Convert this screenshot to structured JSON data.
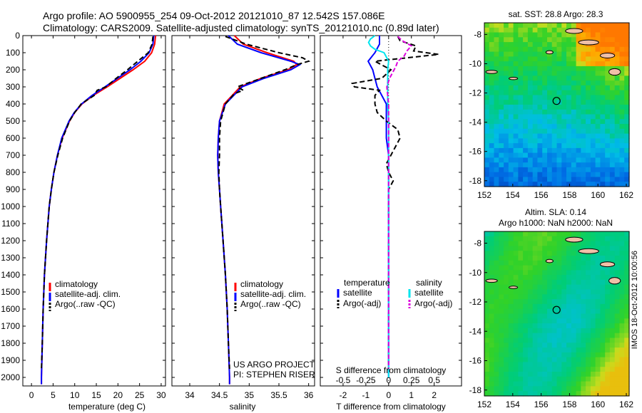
{
  "header": {
    "line1": "Argo profile: AO 5900955_254 09-Oct-2012 20121010_87 12.542S 157.086E",
    "line2": "Climatology: CARS2009. Satellite-adjusted climatology: synTS_20121010.nc (0.89d later)"
  },
  "stamp": "IMOS 18-Oct-2012 10:00:56",
  "depth_ticks": [
    0,
    100,
    200,
    300,
    400,
    500,
    600,
    700,
    800,
    900,
    1000,
    1100,
    1200,
    1300,
    1400,
    1500,
    1600,
    1700,
    1800,
    1900,
    2000
  ],
  "colors": {
    "climatology": "#ff0000",
    "satellite": "#0000ff",
    "argo": "#000000",
    "salinity_sat": "#00e5ee",
    "salinity_argo": "#dd00dd"
  },
  "chart_data": [
    {
      "type": "line",
      "name": "temperature",
      "xlabel": "temperature (deg C)",
      "ylabel": "depth",
      "xlim": [
        -2,
        31
      ],
      "ylim": [
        2050,
        0
      ],
      "xticks": [
        0,
        5,
        10,
        15,
        20,
        25,
        30
      ],
      "legend": [
        "climatology",
        "satellite-adj. clim.",
        "Argo(..raw -QC)"
      ],
      "series": [
        {
          "name": "climatology",
          "depth": [
            0,
            50,
            100,
            150,
            200,
            250,
            300,
            350,
            400,
            450,
            500,
            600,
            700,
            800,
            900,
            1000,
            1200,
            1400,
            1600,
            1800,
            2000,
            2040
          ],
          "values": [
            28.7,
            28.5,
            27.8,
            26.2,
            23.5,
            20.5,
            17.5,
            14.3,
            11.7,
            10.0,
            8.8,
            7.1,
            6.0,
            5.2,
            4.6,
            4.1,
            3.5,
            3.0,
            2.7,
            2.5,
            2.3,
            2.3
          ]
        },
        {
          "name": "satellite-adj. clim.",
          "depth": [
            0,
            50,
            100,
            150,
            200,
            250,
            300,
            350,
            400,
            450,
            500,
            600,
            700,
            800,
            900,
            1000,
            1200,
            1400,
            1600,
            1800,
            2000,
            2040
          ],
          "values": [
            28.3,
            28.1,
            27.2,
            25.3,
            22.8,
            19.9,
            17.0,
            14.0,
            11.6,
            9.9,
            8.7,
            7.0,
            6.0,
            5.2,
            4.6,
            4.1,
            3.5,
            3.0,
            2.7,
            2.5,
            2.3,
            2.3
          ]
        },
        {
          "name": "Argo(..raw -QC)",
          "depth": [
            5,
            50,
            100,
            150,
            200,
            250,
            300,
            320,
            350,
            400,
            450,
            500,
            600,
            700,
            800,
            900,
            1000,
            1200,
            1400,
            1600,
            1800,
            1950
          ],
          "values": [
            28.1,
            27.9,
            27.0,
            24.6,
            22.2,
            19.6,
            17.2,
            15.2,
            14.5,
            11.5,
            10.0,
            8.8,
            7.2,
            6.1,
            5.2,
            4.6,
            4.1,
            3.5,
            3.0,
            2.7,
            2.5,
            2.3
          ]
        }
      ]
    },
    {
      "type": "line",
      "name": "salinity",
      "xlabel": "salinity",
      "xlim": [
        33.7,
        36.1
      ],
      "ylim": [
        2050,
        0
      ],
      "xticks": [
        34,
        34.5,
        35,
        35.5,
        36
      ],
      "legend": [
        "climatology",
        "satellite-adj. clim.",
        "Argo(..raw -QC)"
      ],
      "annotation": [
        "US ARGO PROJECT",
        "PI: STEPHEN RISER"
      ],
      "series": [
        {
          "name": "climatology",
          "depth": [
            0,
            50,
            100,
            150,
            170,
            200,
            250,
            300,
            400,
            500,
            600,
            700,
            800,
            900,
            1000,
            1200,
            1400,
            1600,
            1800,
            2000,
            2040
          ],
          "values": [
            34.75,
            34.9,
            35.3,
            35.75,
            35.8,
            35.65,
            35.2,
            34.85,
            34.58,
            34.5,
            34.48,
            34.47,
            34.48,
            34.5,
            34.52,
            34.56,
            34.6,
            34.63,
            34.65,
            34.67,
            34.67
          ]
        },
        {
          "name": "satellite-adj. clim.",
          "depth": [
            0,
            50,
            100,
            150,
            170,
            200,
            250,
            300,
            400,
            500,
            600,
            700,
            800,
            900,
            1000,
            1200,
            1400,
            1600,
            1800,
            2000,
            2040
          ],
          "values": [
            34.65,
            34.8,
            35.2,
            35.7,
            35.85,
            35.7,
            35.25,
            34.88,
            34.6,
            34.5,
            34.48,
            34.47,
            34.48,
            34.5,
            34.52,
            34.56,
            34.6,
            34.63,
            34.65,
            34.67,
            34.67
          ]
        },
        {
          "name": "Argo(..raw -QC)",
          "depth": [
            5,
            50,
            100,
            130,
            150,
            170,
            200,
            250,
            300,
            320,
            340,
            400,
            500,
            600,
            700,
            800,
            900,
            1000,
            1200,
            1400,
            1600,
            1800,
            1950
          ],
          "values": [
            34.6,
            34.95,
            35.5,
            35.9,
            36.0,
            35.8,
            35.6,
            35.2,
            34.8,
            34.9,
            34.75,
            34.6,
            34.52,
            34.5,
            34.5,
            34.49,
            34.5,
            34.52,
            34.56,
            34.6,
            34.63,
            34.65,
            34.67
          ]
        }
      ]
    },
    {
      "type": "line",
      "name": "difference",
      "xlabel_top": "S difference from climatology",
      "xlabel": "T difference from climatology",
      "xlim": [
        -3,
        3.2
      ],
      "ylim": [
        2050,
        0
      ],
      "xticks": [
        -2,
        -1,
        0,
        1,
        2
      ],
      "sticks": [
        -0.5,
        -0.25,
        0,
        0.25,
        0.5
      ],
      "sticklabels": [
        "-0.5",
        "-0.25",
        "0",
        "0.25",
        "0.5"
      ],
      "legend_titles": [
        "temperature",
        "salinity"
      ],
      "legend": [
        "satellite",
        "Argo(-adj)",
        "satellite",
        "Argo(-adj)"
      ],
      "series": [
        {
          "name": "temperature satellite",
          "depth": [
            0,
            50,
            100,
            150,
            200,
            250,
            300,
            350,
            400,
            450,
            500,
            600,
            700,
            800,
            900,
            1000,
            1200,
            1400,
            1600,
            1800,
            2000
          ],
          "values": [
            -0.4,
            -0.4,
            -0.6,
            -0.9,
            -0.7,
            -0.6,
            -0.5,
            -0.3,
            -0.1,
            -0.1,
            -0.1,
            -0.1,
            0,
            0,
            0,
            0,
            0,
            0,
            0,
            0,
            0
          ]
        },
        {
          "name": "temperature Argo",
          "depth": [
            5,
            30,
            60,
            90,
            110,
            150,
            200,
            250,
            280,
            300,
            320,
            350,
            400,
            450,
            500,
            550,
            600,
            650,
            700,
            750,
            800,
            850,
            900,
            1000,
            1200,
            1400,
            1600,
            1800,
            1950
          ],
          "values": [
            0.4,
            0.5,
            1.2,
            1.1,
            2.2,
            -0.6,
            0.1,
            -0.3,
            -1.6,
            -1.5,
            -0.4,
            -0.6,
            -0.6,
            -0.5,
            -0.1,
            0.4,
            0.5,
            0.3,
            0.1,
            -0.1,
            0,
            0.2,
            0,
            0,
            0,
            0,
            0,
            0,
            0
          ]
        },
        {
          "name": "salinity satellite",
          "depth": [
            0,
            20,
            40,
            60,
            80,
            100,
            150,
            200,
            300,
            400,
            500,
            1000,
            1500,
            2000
          ],
          "values": [
            -0.15,
            -0.2,
            -0.22,
            -0.2,
            -0.15,
            -0.05,
            0,
            -0.01,
            -0.01,
            -0.01,
            0,
            0,
            0,
            0
          ]
        },
        {
          "name": "salinity Argo",
          "depth": [
            5,
            30,
            60,
            90,
            120,
            150,
            180,
            210,
            250,
            300,
            350,
            400,
            500,
            600,
            800,
            1000,
            1500,
            1950
          ],
          "values": [
            0.1,
            0.15,
            0.25,
            0.2,
            0.17,
            0.1,
            0.08,
            0.05,
            0.01,
            -0.02,
            -0.01,
            0,
            0,
            0,
            0,
            0,
            0,
            0
          ]
        }
      ]
    },
    {
      "type": "heatmap",
      "name": "sst-map",
      "title": "sat. SST: 28.8 Argo: 28.3",
      "xlim": [
        152,
        162.2
      ],
      "ylim": [
        -18.4,
        -7.2
      ],
      "xticks": [
        152,
        154,
        156,
        158,
        160,
        162
      ],
      "yticks": [
        -8,
        -10,
        -12,
        -14,
        -16,
        -18
      ],
      "marker": {
        "lon": 157.086,
        "lat": -12.542
      }
    },
    {
      "type": "heatmap",
      "name": "sla-map",
      "title": "Altim. SLA: 0.14",
      "subtitle": "Argo h1000: NaN h2000: NaN",
      "xlim": [
        152,
        162.2
      ],
      "ylim": [
        -18.4,
        -7.2
      ],
      "xticks": [
        152,
        154,
        156,
        158,
        160,
        162
      ],
      "yticks": [
        -8,
        -10,
        -12,
        -14,
        -16,
        -18
      ],
      "marker": {
        "lon": 157.086,
        "lat": -12.542
      }
    }
  ]
}
